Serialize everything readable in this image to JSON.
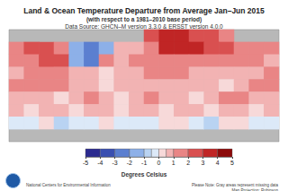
{
  "chart_data": {
    "type": "heatmap",
    "title": "Land & Ocean Temperature Departure from Average Jan–Jun 2015",
    "subtitle": "(with respect to a 1981–2010 base period)",
    "source": "Data Source: GHCN–M version 3.3.0 & ERSST version 4.0.0",
    "lon": [
      -170,
      -150,
      -130,
      -110,
      -90,
      -70,
      -50,
      -30,
      -10,
      10,
      30,
      50,
      70,
      90,
      110,
      130,
      150,
      170
    ],
    "lat": [
      80,
      60,
      40,
      20,
      0,
      -20,
      -40,
      -60,
      -80
    ],
    "cells": [
      [
        null,
        null,
        null,
        null,
        null,
        null,
        null,
        null,
        null,
        2.5,
        3.5,
        3.5,
        2.5,
        2.5,
        1.5,
        null,
        null,
        null
      ],
      [
        1.5,
        2.5,
        2.5,
        1.5,
        -1.5,
        -2.5,
        -1.5,
        0.7,
        0.7,
        1.5,
        3.5,
        3.5,
        3.5,
        2.5,
        2.5,
        1.5,
        1.5,
        1.5
      ],
      [
        1.5,
        1.5,
        2.5,
        2.5,
        -1.5,
        -2.5,
        1.5,
        0.7,
        1.5,
        1.5,
        1.5,
        1.5,
        1.5,
        1.5,
        1.5,
        1.5,
        1.5,
        0.7
      ],
      [
        0.7,
        1.5,
        1.5,
        1.5,
        0.7,
        0.7,
        0.3,
        0.7,
        0.7,
        1.5,
        1.5,
        1.5,
        0.7,
        0.7,
        0.7,
        0.7,
        0.7,
        1.5
      ],
      [
        1.5,
        1.5,
        1.5,
        1.5,
        0.7,
        0.7,
        0.3,
        0.7,
        0.7,
        0.7,
        0.7,
        0.7,
        0.7,
        0.7,
        0.3,
        0.7,
        1.5,
        1.5
      ],
      [
        0.7,
        0.7,
        0.7,
        0.3,
        0.7,
        1.5,
        0.7,
        0.3,
        0.7,
        1.5,
        0.7,
        0.7,
        0.3,
        0.7,
        1.5,
        1.5,
        0.7,
        0.7
      ],
      [
        0.7,
        0.3,
        0.7,
        0.7,
        0.3,
        0.7,
        0.7,
        0.3,
        0.7,
        0.7,
        0.3,
        0.7,
        0.7,
        0.3,
        0.7,
        0.7,
        0.3,
        0.7
      ],
      [
        -0.3,
        -0.3,
        0.3,
        -0.7,
        -0.3,
        -0.3,
        0.3,
        -0.3,
        -0.3,
        -0.3,
        0.3,
        0.3,
        -0.3,
        -0.7,
        0.3,
        0.3,
        -0.3,
        -0.3
      ],
      [
        null,
        null,
        null,
        null,
        null,
        null,
        null,
        null,
        null,
        null,
        null,
        null,
        null,
        null,
        null,
        null,
        null,
        null
      ]
    ],
    "colorbar": {
      "range": [
        -5,
        5
      ],
      "ticks": [
        -5,
        -4,
        -3,
        -2,
        -1,
        0,
        1,
        2,
        3,
        4,
        5
      ],
      "bins": [
        -5,
        -4,
        -3,
        -2,
        -1,
        -0.5,
        0,
        0.5,
        1,
        2,
        3,
        4,
        5
      ],
      "colors": [
        "#2b2a8f",
        "#3a4fb0",
        "#5b7fd0",
        "#8db0e8",
        "#b9d3f2",
        "#dce9f8",
        "#f7d9d9",
        "#f2b3b3",
        "#e98585",
        "#d95050",
        "#c02525",
        "#8c0a0a"
      ],
      "label": "Degrees Celsius"
    },
    "notes": [
      "National Centers for Environmental Information",
      "Please Note: Gray areas represent missing data",
      "Map Projection: Robinson"
    ],
    "tick_labels": false
  }
}
